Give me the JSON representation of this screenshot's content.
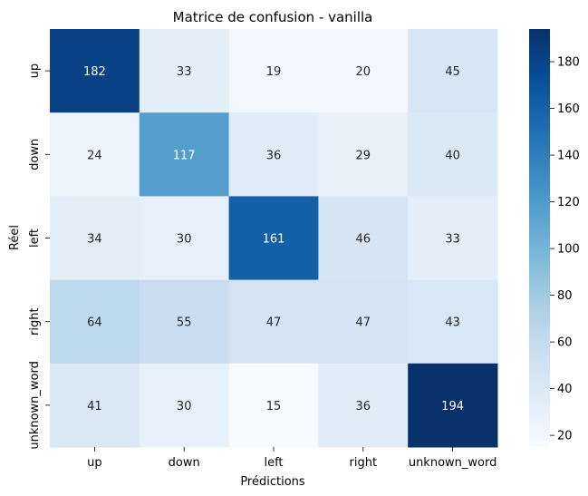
{
  "chart_data": {
    "type": "heatmap",
    "title": "Matrice de confusion - vanilla",
    "xlabel": "Prédictions",
    "ylabel": "Réel",
    "x_categories": [
      "up",
      "down",
      "left",
      "right",
      "unknown_word"
    ],
    "y_categories": [
      "up",
      "down",
      "left",
      "right",
      "unknown_word"
    ],
    "values": [
      [
        182,
        33,
        19,
        20,
        45
      ],
      [
        24,
        117,
        36,
        29,
        40
      ],
      [
        34,
        30,
        161,
        46,
        33
      ],
      [
        64,
        55,
        47,
        47,
        43
      ],
      [
        41,
        30,
        15,
        36,
        194
      ]
    ],
    "colormap": "Blues",
    "value_range": [
      15,
      194
    ],
    "colorbar_ticks": [
      20,
      40,
      60,
      80,
      100,
      120,
      140,
      160,
      180
    ],
    "annotated": true,
    "text_color_light": "#ffffff",
    "text_color_dark": "#262626"
  }
}
